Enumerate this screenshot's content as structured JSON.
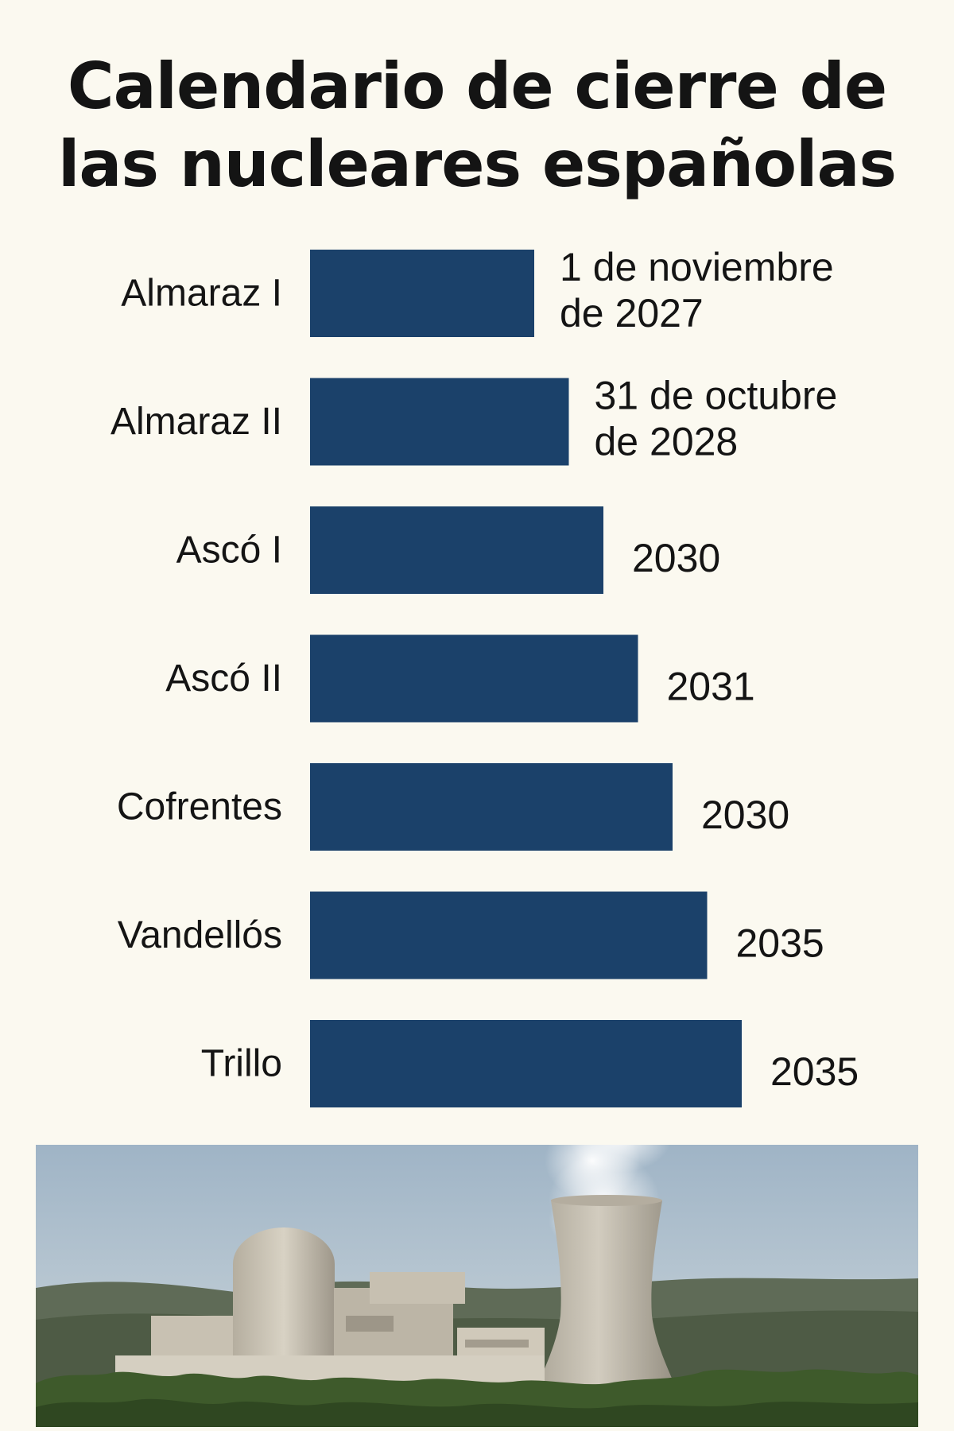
{
  "chart_data": {
    "type": "bar",
    "orientation": "horizontal",
    "title": "Calendario de cierre de las nucleares españolas",
    "title_lines": [
      "Calendario de cierre de",
      "las nucleares españolas"
    ],
    "categories": [
      "Almaraz I",
      "Almaraz II",
      "Ascó I",
      "Ascó II",
      "Cofrentes",
      "Vandellós",
      "Trillo"
    ],
    "values": [
      2027.84,
      2028.83,
      2030,
      2031,
      2030,
      2035,
      2035
    ],
    "data_labels": [
      [
        "1 de noviembre",
        "de 2027"
      ],
      [
        "31 de octubre",
        "de 2028"
      ],
      [
        "2030"
      ],
      [
        "2031"
      ],
      [
        "2030"
      ],
      [
        "2035"
      ],
      [
        "2035"
      ]
    ],
    "bar_length_order": [
      1,
      2,
      3,
      4,
      5,
      6,
      7
    ],
    "bar_color": "#1b416a",
    "grid": false,
    "legend": "none",
    "xlabel": "",
    "ylabel": ""
  },
  "photo": {
    "icon": "nuclear-plant-photo",
    "colors": {
      "sky": "#a9bccc",
      "hills": "#5d6a55",
      "concrete": "#c9c2b4",
      "vegetation": "#3f5a2c"
    }
  }
}
